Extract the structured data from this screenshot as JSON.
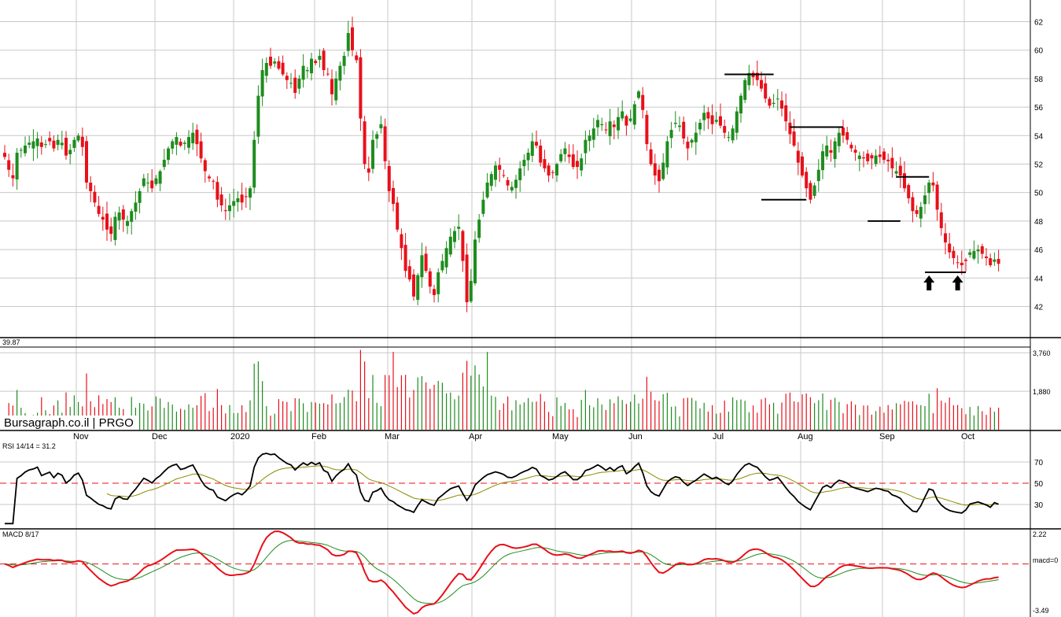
{
  "chart_data": [
    {
      "type": "candlestick",
      "title": "",
      "xlabel": "",
      "ylabel": "",
      "ylim": [
        39.87,
        63.3
      ],
      "yticks": [
        42,
        44,
        46,
        48,
        50,
        52,
        54,
        56,
        58,
        60,
        62
      ],
      "low_label": "39.87",
      "x_months": [
        "Nov",
        "Dec",
        "2020",
        "Feb",
        "Mar",
        "Apr",
        "May",
        "Jun",
        "Jul",
        "Aug",
        "Sep",
        "Oct"
      ],
      "closes": [
        52.5,
        51.6,
        51.0,
        52.8,
        53.0,
        53.3,
        53.5,
        53.6,
        53.8,
        53.2,
        53.4,
        53.6,
        53.1,
        53.7,
        53.5,
        52.6,
        53.0,
        53.7,
        54.0,
        53.2,
        50.7,
        50.1,
        49.3,
        48.5,
        48.1,
        47.4,
        47.1,
        48.3,
        48.6,
        48.1,
        48.0,
        48.7,
        49.3,
        50.1,
        51.0,
        50.7,
        50.3,
        51.0,
        51.5,
        52.3,
        53.1,
        53.6,
        53.9,
        53.3,
        53.5,
        53.9,
        54.2,
        53.4,
        52.4,
        51.5,
        51.0,
        50.8,
        49.5,
        49.1,
        48.7,
        49.1,
        49.4,
        49.6,
        49.3,
        49.7,
        50.3,
        53.7,
        56.8,
        58.6,
        59.1,
        58.9,
        59.2,
        58.7,
        58.3,
        57.9,
        57.7,
        57.0,
        58.0,
        58.9,
        58.6,
        59.4,
        59.1,
        59.6,
        58.6,
        58.3,
        56.9,
        58.0,
        58.9,
        59.6,
        61.2,
        60.0,
        59.3,
        55.2,
        52.0,
        51.4,
        53.7,
        54.1,
        54.8,
        52.2,
        50.1,
        49.2,
        47.4,
        46.1,
        44.5,
        43.9,
        42.7,
        44.2,
        45.6,
        44.5,
        43.4,
        42.8,
        44.4,
        45.2,
        46.1,
        46.9,
        47.3,
        47.6,
        45.2,
        42.3,
        43.8,
        46.7,
        48.1,
        49.5,
        50.7,
        51.3,
        51.9,
        51.6,
        51.2,
        50.5,
        50.4,
        50.9,
        51.7,
        52.3,
        52.8,
        53.6,
        53.3,
        52.1,
        51.7,
        51.2,
        51.4,
        52.0,
        52.7,
        53.1,
        52.5,
        51.8,
        51.8,
        52.4,
        53.7,
        54.0,
        54.5,
        55.1,
        54.8,
        54.4,
        55.0,
        54.6,
        55.3,
        55.7,
        54.7,
        55.2,
        56.2,
        57.1,
        55.8,
        53.4,
        52.0,
        51.2,
        50.8,
        52.1,
        53.6,
        54.4,
        54.9,
        54.7,
        53.8,
        53.1,
        53.7,
        54.2,
        54.9,
        55.6,
        55.2,
        54.8,
        55.1,
        54.7,
        54.2,
        53.9,
        54.5,
        55.7,
        56.8,
        57.9,
        58.4,
        58.1,
        57.9,
        57.3,
        56.6,
        56.1,
        56.3,
        56.6,
        55.9,
        55.0,
        54.1,
        53.3,
        52.1,
        51.2,
        50.3,
        49.5,
        50.5,
        51.6,
        52.9,
        53.3,
        52.8,
        53.6,
        54.2,
        54.0,
        53.7,
        53.1,
        52.8,
        52.6,
        52.4,
        52.2,
        52.4,
        52.6,
        52.5,
        52.3,
        52.2,
        51.7,
        51.5,
        51.2,
        50.3,
        49.6,
        48.7,
        48.5,
        49.0,
        49.8,
        50.7,
        50.5,
        48.8,
        47.5,
        46.5,
        45.8,
        45.4,
        45.1,
        44.9,
        45.2,
        45.8,
        45.9,
        46.0,
        45.7,
        45.4,
        44.9,
        45.3,
        45.0
      ],
      "annotation_levels": [
        {
          "price": 58.3,
          "from": 176,
          "to": 188
        },
        {
          "price": 54.6,
          "from": 192,
          "to": 205
        },
        {
          "price": 49.5,
          "from": 185,
          "to": 196
        },
        {
          "price": 51.1,
          "from": 218,
          "to": 226
        },
        {
          "price": 48.0,
          "from": 211,
          "to": 219
        },
        {
          "price": 44.4,
          "from": 225,
          "to": 235
        }
      ],
      "arrows_at": [
        226,
        233
      ],
      "colors": {
        "up": "#1e8c1e",
        "down": "#e8101a",
        "grid": "#c8c8c8",
        "axis": "#000000"
      }
    },
    {
      "type": "bar",
      "name": "volume",
      "yticks": [
        1880,
        3760
      ],
      "ylim": [
        0,
        4000
      ]
    },
    {
      "type": "line",
      "label": "RSI 14/14 = 31.2",
      "yticks": [
        30,
        50,
        70
      ],
      "ylim": [
        10,
        90
      ],
      "reference_line": 50,
      "colors": {
        "rsi": "#000000",
        "signal": "#8b8b00",
        "reference": "#e8101a"
      }
    },
    {
      "type": "line",
      "label": "MACD 8/17",
      "top_label": "2.22",
      "bottom_label": "-3.49",
      "zero_label": "macd=0",
      "ylim": [
        -3.49,
        2.22
      ],
      "colors": {
        "macd": "#e8101a",
        "signal": "#1e8c1e",
        "zero": "#e8101a"
      }
    }
  ],
  "watermark": "Bursagraph.co.il | PRGO"
}
